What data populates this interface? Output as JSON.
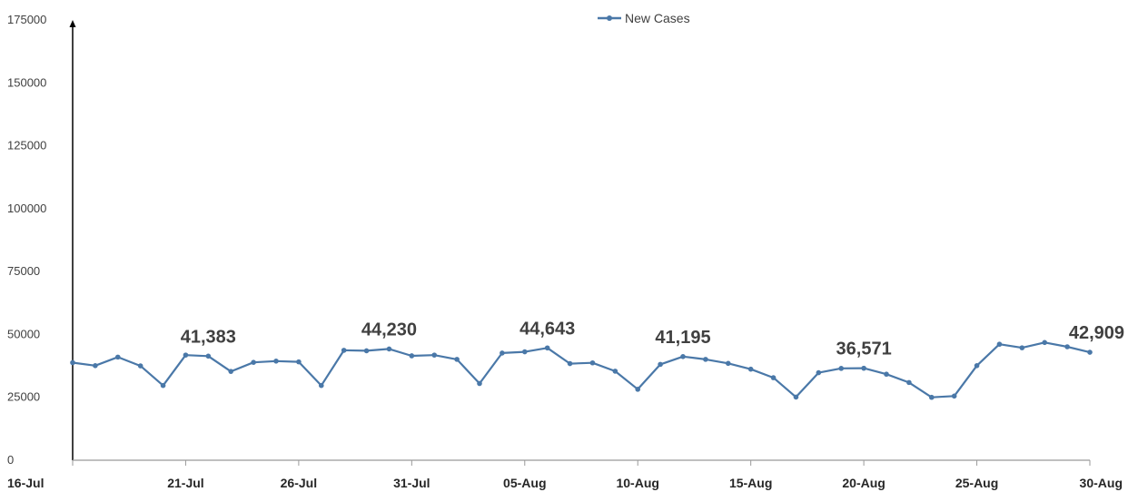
{
  "chart_data": {
    "type": "line",
    "legend": {
      "position": "top-center"
    },
    "grid": false,
    "colors": {
      "series": "#4a78a8",
      "axis": "#000000",
      "text": "#404040"
    },
    "ylim": [
      0,
      175000
    ],
    "yticks": [
      "0",
      "25000",
      "50000",
      "75000",
      "100000",
      "125000",
      "150000",
      "175000"
    ],
    "ytick_values": [
      0,
      25000,
      50000,
      75000,
      100000,
      125000,
      150000,
      175000
    ],
    "xtick_labels": [
      "16-Jul",
      "21-Jul",
      "26-Jul",
      "31-Jul",
      "05-Aug",
      "10-Aug",
      "15-Aug",
      "20-Aug",
      "25-Aug",
      "30-Aug"
    ],
    "x": [
      "16-Jul",
      "17-Jul",
      "18-Jul",
      "19-Jul",
      "20-Jul",
      "21-Jul",
      "22-Jul",
      "23-Jul",
      "24-Jul",
      "25-Jul",
      "26-Jul",
      "27-Jul",
      "28-Jul",
      "29-Jul",
      "30-Jul",
      "31-Jul",
      "01-Aug",
      "02-Aug",
      "03-Aug",
      "04-Aug",
      "05-Aug",
      "06-Aug",
      "07-Aug",
      "08-Aug",
      "09-Aug",
      "10-Aug",
      "11-Aug",
      "12-Aug",
      "13-Aug",
      "14-Aug",
      "15-Aug",
      "16-Aug",
      "17-Aug",
      "18-Aug",
      "19-Aug",
      "20-Aug",
      "21-Aug",
      "22-Aug",
      "23-Aug",
      "24-Aug",
      "25-Aug",
      "26-Aug",
      "27-Aug",
      "28-Aug",
      "29-Aug",
      "30-Aug"
    ],
    "series": [
      {
        "name": "New Cases",
        "values": [
          38800,
          37600,
          41000,
          37500,
          29700,
          41800,
          41383,
          35300,
          38900,
          39400,
          39100,
          29700,
          43700,
          43500,
          44230,
          41500,
          41800,
          40100,
          30500,
          42600,
          43100,
          44643,
          38400,
          38700,
          35400,
          28200,
          38100,
          41195,
          40100,
          38500,
          36200,
          32800,
          25100,
          34800,
          36500,
          36571,
          34200,
          30900,
          25000,
          25500,
          37600,
          46100,
          44700,
          46800,
          45100,
          42909
        ]
      }
    ],
    "annotations": [
      {
        "index": 6,
        "text": "41,383"
      },
      {
        "index": 14,
        "text": "44,230"
      },
      {
        "index": 21,
        "text": "44,643"
      },
      {
        "index": 27,
        "text": "41,195"
      },
      {
        "index": 35,
        "text": "36,571"
      },
      {
        "index": 45,
        "text": "42,909"
      }
    ]
  }
}
